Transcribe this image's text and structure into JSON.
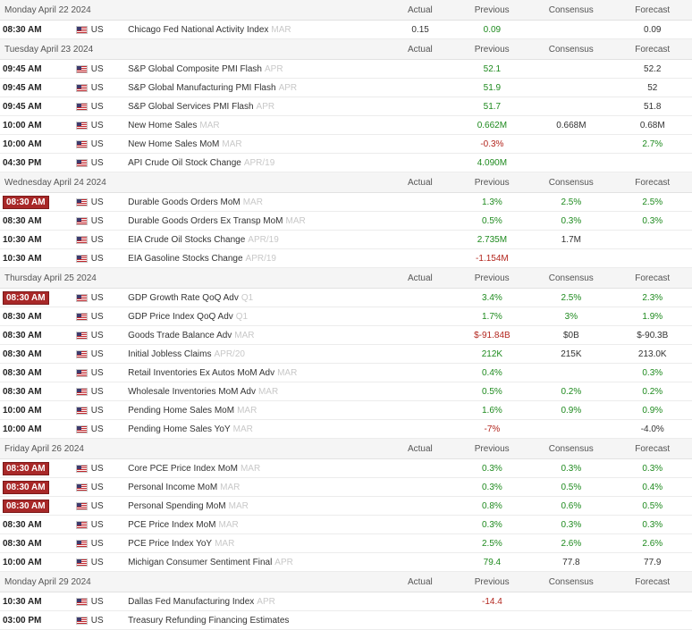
{
  "columns": {
    "actual": "Actual",
    "previous": "Previous",
    "consensus": "Consensus",
    "forecast": "Forecast"
  },
  "colors": {
    "green": "#1e8a1e",
    "red": "#b3261e",
    "badge": "#a82828"
  },
  "days": [
    {
      "date": "Monday April 22 2024",
      "events": [
        {
          "time": "08:30 AM",
          "highlight": false,
          "country": "US",
          "event": "Chicago Fed National Activity Index",
          "ref": "MAR",
          "actual": "0.15",
          "previous": "0.09",
          "previous_color": "green",
          "consensus": "",
          "consensus_color": "neutral",
          "forecast": "0.09",
          "forecast_color": "neutral"
        }
      ]
    },
    {
      "date": "Tuesday April 23 2024",
      "events": [
        {
          "time": "09:45 AM",
          "highlight": false,
          "country": "US",
          "event": "S&P Global Composite PMI Flash",
          "ref": "APR",
          "actual": "",
          "previous": "52.1",
          "previous_color": "green",
          "consensus": "",
          "consensus_color": "neutral",
          "forecast": "52.2",
          "forecast_color": "neutral"
        },
        {
          "time": "09:45 AM",
          "highlight": false,
          "country": "US",
          "event": "S&P Global Manufacturing PMI Flash",
          "ref": "APR",
          "actual": "",
          "previous": "51.9",
          "previous_color": "green",
          "consensus": "",
          "consensus_color": "neutral",
          "forecast": "52",
          "forecast_color": "neutral"
        },
        {
          "time": "09:45 AM",
          "highlight": false,
          "country": "US",
          "event": "S&P Global Services PMI Flash",
          "ref": "APR",
          "actual": "",
          "previous": "51.7",
          "previous_color": "green",
          "consensus": "",
          "consensus_color": "neutral",
          "forecast": "51.8",
          "forecast_color": "neutral"
        },
        {
          "time": "10:00 AM",
          "highlight": false,
          "country": "US",
          "event": "New Home Sales",
          "ref": "MAR",
          "actual": "",
          "previous": "0.662M",
          "previous_color": "green",
          "consensus": "0.668M",
          "consensus_color": "neutral",
          "forecast": "0.68M",
          "forecast_color": "neutral"
        },
        {
          "time": "10:00 AM",
          "highlight": false,
          "country": "US",
          "event": "New Home Sales MoM",
          "ref": "MAR",
          "actual": "",
          "previous": "-0.3%",
          "previous_color": "red",
          "consensus": "",
          "consensus_color": "neutral",
          "forecast": "2.7%",
          "forecast_color": "green"
        },
        {
          "time": "04:30 PM",
          "highlight": false,
          "country": "US",
          "event": "API Crude Oil Stock Change",
          "ref": "APR/19",
          "actual": "",
          "previous": "4.090M",
          "previous_color": "green",
          "consensus": "",
          "consensus_color": "neutral",
          "forecast": "",
          "forecast_color": "neutral"
        }
      ]
    },
    {
      "date": "Wednesday April 24 2024",
      "events": [
        {
          "time": "08:30 AM",
          "highlight": true,
          "country": "US",
          "event": "Durable Goods Orders MoM",
          "ref": "MAR",
          "actual": "",
          "previous": "1.3%",
          "previous_color": "green",
          "consensus": "2.5%",
          "consensus_color": "green",
          "forecast": "2.5%",
          "forecast_color": "green"
        },
        {
          "time": "08:30 AM",
          "highlight": false,
          "country": "US",
          "event": "Durable Goods Orders Ex Transp MoM",
          "ref": "MAR",
          "actual": "",
          "previous": "0.5%",
          "previous_color": "green",
          "consensus": "0.3%",
          "consensus_color": "green",
          "forecast": "0.3%",
          "forecast_color": "green"
        },
        {
          "time": "10:30 AM",
          "highlight": false,
          "country": "US",
          "event": "EIA Crude Oil Stocks Change",
          "ref": "APR/19",
          "actual": "",
          "previous": "2.735M",
          "previous_color": "green",
          "consensus": "1.7M",
          "consensus_color": "neutral",
          "forecast": "",
          "forecast_color": "neutral"
        },
        {
          "time": "10:30 AM",
          "highlight": false,
          "country": "US",
          "event": "EIA Gasoline Stocks Change",
          "ref": "APR/19",
          "actual": "",
          "previous": "-1.154M",
          "previous_color": "red",
          "consensus": "",
          "consensus_color": "neutral",
          "forecast": "",
          "forecast_color": "neutral"
        }
      ]
    },
    {
      "date": "Thursday April 25 2024",
      "events": [
        {
          "time": "08:30 AM",
          "highlight": true,
          "country": "US",
          "event": "GDP Growth Rate QoQ Adv",
          "ref": "Q1",
          "actual": "",
          "previous": "3.4%",
          "previous_color": "green",
          "consensus": "2.5%",
          "consensus_color": "green",
          "forecast": "2.3%",
          "forecast_color": "green"
        },
        {
          "time": "08:30 AM",
          "highlight": false,
          "country": "US",
          "event": "GDP Price Index QoQ Adv",
          "ref": "Q1",
          "actual": "",
          "previous": "1.7%",
          "previous_color": "green",
          "consensus": "3%",
          "consensus_color": "green",
          "forecast": "1.9%",
          "forecast_color": "green"
        },
        {
          "time": "08:30 AM",
          "highlight": false,
          "country": "US",
          "event": "Goods Trade Balance Adv",
          "ref": "MAR",
          "actual": "",
          "previous": "$-91.84B",
          "previous_color": "red",
          "consensus": "$0B",
          "consensus_color": "neutral",
          "forecast": "$-90.3B",
          "forecast_color": "neutral"
        },
        {
          "time": "08:30 AM",
          "highlight": false,
          "country": "US",
          "event": "Initial Jobless Claims",
          "ref": "APR/20",
          "actual": "",
          "previous": "212K",
          "previous_color": "green",
          "consensus": "215K",
          "consensus_color": "neutral",
          "forecast": "213.0K",
          "forecast_color": "neutral"
        },
        {
          "time": "08:30 AM",
          "highlight": false,
          "country": "US",
          "event": "Retail Inventories Ex Autos MoM Adv",
          "ref": "MAR",
          "actual": "",
          "previous": "0.4%",
          "previous_color": "green",
          "consensus": "",
          "consensus_color": "neutral",
          "forecast": "0.3%",
          "forecast_color": "green"
        },
        {
          "time": "08:30 AM",
          "highlight": false,
          "country": "US",
          "event": "Wholesale Inventories MoM Adv",
          "ref": "MAR",
          "actual": "",
          "previous": "0.5%",
          "previous_color": "green",
          "consensus": "0.2%",
          "consensus_color": "green",
          "forecast": "0.2%",
          "forecast_color": "green"
        },
        {
          "time": "10:00 AM",
          "highlight": false,
          "country": "US",
          "event": "Pending Home Sales MoM",
          "ref": "MAR",
          "actual": "",
          "previous": "1.6%",
          "previous_color": "green",
          "consensus": "0.9%",
          "consensus_color": "green",
          "forecast": "0.9%",
          "forecast_color": "green"
        },
        {
          "time": "10:00 AM",
          "highlight": false,
          "country": "US",
          "event": "Pending Home Sales YoY",
          "ref": "MAR",
          "actual": "",
          "previous": "-7%",
          "previous_color": "red",
          "consensus": "",
          "consensus_color": "neutral",
          "forecast": "-4.0%",
          "forecast_color": "neutral"
        }
      ]
    },
    {
      "date": "Friday April 26 2024",
      "events": [
        {
          "time": "08:30 AM",
          "highlight": true,
          "country": "US",
          "event": "Core PCE Price Index MoM",
          "ref": "MAR",
          "actual": "",
          "previous": "0.3%",
          "previous_color": "green",
          "consensus": "0.3%",
          "consensus_color": "green",
          "forecast": "0.3%",
          "forecast_color": "green"
        },
        {
          "time": "08:30 AM",
          "highlight": true,
          "country": "US",
          "event": "Personal Income MoM",
          "ref": "MAR",
          "actual": "",
          "previous": "0.3%",
          "previous_color": "green",
          "consensus": "0.5%",
          "consensus_color": "green",
          "forecast": "0.4%",
          "forecast_color": "green"
        },
        {
          "time": "08:30 AM",
          "highlight": true,
          "country": "US",
          "event": "Personal Spending MoM",
          "ref": "MAR",
          "actual": "",
          "previous": "0.8%",
          "previous_color": "green",
          "consensus": "0.6%",
          "consensus_color": "green",
          "forecast": "0.5%",
          "forecast_color": "green"
        },
        {
          "time": "08:30 AM",
          "highlight": false,
          "country": "US",
          "event": "PCE Price Index MoM",
          "ref": "MAR",
          "actual": "",
          "previous": "0.3%",
          "previous_color": "green",
          "consensus": "0.3%",
          "consensus_color": "green",
          "forecast": "0.3%",
          "forecast_color": "green"
        },
        {
          "time": "08:30 AM",
          "highlight": false,
          "country": "US",
          "event": "PCE Price Index YoY",
          "ref": "MAR",
          "actual": "",
          "previous": "2.5%",
          "previous_color": "green",
          "consensus": "2.6%",
          "consensus_color": "green",
          "forecast": "2.6%",
          "forecast_color": "green"
        },
        {
          "time": "10:00 AM",
          "highlight": false,
          "country": "US",
          "event": "Michigan Consumer Sentiment Final",
          "ref": "APR",
          "actual": "",
          "previous": "79.4",
          "previous_color": "green",
          "consensus": "77.8",
          "consensus_color": "neutral",
          "forecast": "77.9",
          "forecast_color": "neutral"
        }
      ]
    },
    {
      "date": "Monday April 29 2024",
      "events": [
        {
          "time": "10:30 AM",
          "highlight": false,
          "country": "US",
          "event": "Dallas Fed Manufacturing Index",
          "ref": "APR",
          "actual": "",
          "previous": "-14.4",
          "previous_color": "red",
          "consensus": "",
          "consensus_color": "neutral",
          "forecast": "",
          "forecast_color": "neutral"
        },
        {
          "time": "03:00 PM",
          "highlight": false,
          "country": "US",
          "event": "Treasury Refunding Financing Estimates",
          "ref": "",
          "actual": "",
          "previous": "",
          "previous_color": "neutral",
          "consensus": "",
          "consensus_color": "neutral",
          "forecast": "",
          "forecast_color": "neutral"
        }
      ]
    }
  ]
}
